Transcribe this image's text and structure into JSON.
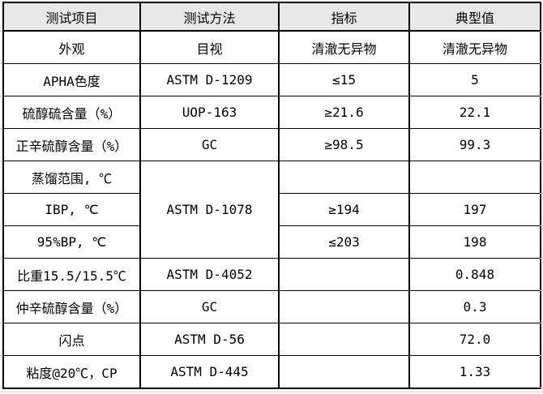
{
  "table": {
    "headers": [
      "测试项目",
      "测试方法",
      "指标",
      "典型值"
    ],
    "rows": [
      {
        "item": "外观",
        "method": "目视",
        "spec": "清澈无异物",
        "typical": "清澈无异物"
      },
      {
        "item": "APHA色度",
        "method": "ASTM D-1209",
        "spec": "≤15",
        "typical": "5"
      },
      {
        "item": "硫醇硫含量（%）",
        "method": "UOP-163",
        "spec": "≥21.6",
        "typical": "22.1"
      },
      {
        "item": "正辛硫醇含量（%）",
        "method": "GC",
        "spec": "≥98.5",
        "typical": "99.3"
      },
      {
        "item": "蒸馏范围, ℃",
        "method": "ASTM D-1078",
        "method_rowspan": 3,
        "spec": "",
        "typical": ""
      },
      {
        "item": "IBP, ℃",
        "method": null,
        "spec": "≥194",
        "typical": "197"
      },
      {
        "item": "95%BP, ℃",
        "method": null,
        "spec": "≤203",
        "typical": "198"
      },
      {
        "item": "比重15.5/15.5℃",
        "method": "ASTM D-4052",
        "spec": "",
        "typical": "0.848"
      },
      {
        "item": "仲辛硫醇含量（%）",
        "method": "GC",
        "spec": "",
        "typical": "0.3"
      },
      {
        "item": "闪点",
        "method": "ASTM D-56",
        "spec": "",
        "typical": "72.0"
      },
      {
        "item": "粘度@20℃，CP",
        "method": "ASTM D-445",
        "spec": "",
        "typical": "1.33"
      }
    ],
    "colors": {
      "header_bg": "#e8e8e8",
      "border": "#000000",
      "gridline_stub": "#cfcfcf",
      "text": "#000000",
      "background": "#ffffff"
    }
  }
}
